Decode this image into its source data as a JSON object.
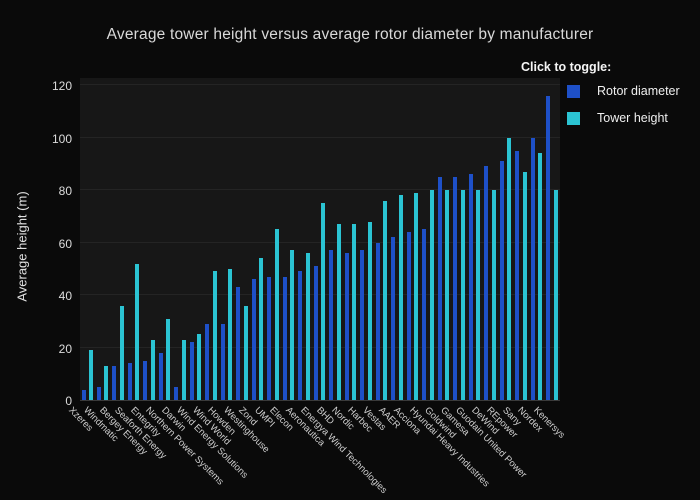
{
  "title": "Average tower height versus average rotor diameter by manufacturer",
  "legend": {
    "heading": "Click to toggle:",
    "items": [
      {
        "label": "Rotor diameter",
        "color": "#1e50c8"
      },
      {
        "label": "Tower height",
        "color": "#2bc4d3"
      }
    ]
  },
  "yaxis": {
    "title": "Average height (m)",
    "ticks": [
      0,
      20,
      40,
      60,
      80,
      100,
      120
    ]
  },
  "chart_data": {
    "type": "bar",
    "title": "Average tower height versus average rotor diameter by manufacturer",
    "xlabel": "",
    "ylabel": "Average height (m)",
    "ylim": [
      0,
      120
    ],
    "grid": true,
    "legend_position": "top-right",
    "categories": [
      "Xzeres",
      "Windmatic",
      "Bergey Energy",
      "Seaforth Energy",
      "Entegrity",
      "Northern Power Systems",
      "Darwin",
      "Wind Energy Solutions",
      "Wind World",
      "Howden",
      "Westinghouse",
      "Zond",
      "UMPI",
      "Elecon",
      "Aeronautica",
      "Energya Wind Technologies",
      "BHD",
      "Nordic",
      "Harbec",
      "Vestas",
      "AAER",
      "Acciona",
      "Hyundai Heavy Industries",
      "Goldwind",
      "Gamesa",
      "Guodain United Power",
      "DeWind",
      "REpower",
      "Sany",
      "Nordex",
      "Kenersys"
    ],
    "series": [
      {
        "name": "Rotor diameter",
        "color": "#1e50c8",
        "values": [
          4,
          5,
          13,
          14,
          15,
          18,
          5,
          22,
          29,
          29,
          43,
          46,
          47,
          47,
          49,
          51,
          57,
          56,
          57,
          60,
          62,
          64,
          65,
          85,
          85,
          86,
          89,
          91,
          95,
          100,
          116
        ]
      },
      {
        "name": "Tower height",
        "color": "#2bc4d3",
        "values": [
          19,
          13,
          36,
          52,
          23,
          31,
          23,
          25,
          49,
          50,
          36,
          54,
          65,
          57,
          56,
          75,
          67,
          67,
          68,
          76,
          78,
          79,
          80,
          80,
          80,
          80,
          80,
          100,
          87,
          94,
          80
        ]
      }
    ]
  }
}
